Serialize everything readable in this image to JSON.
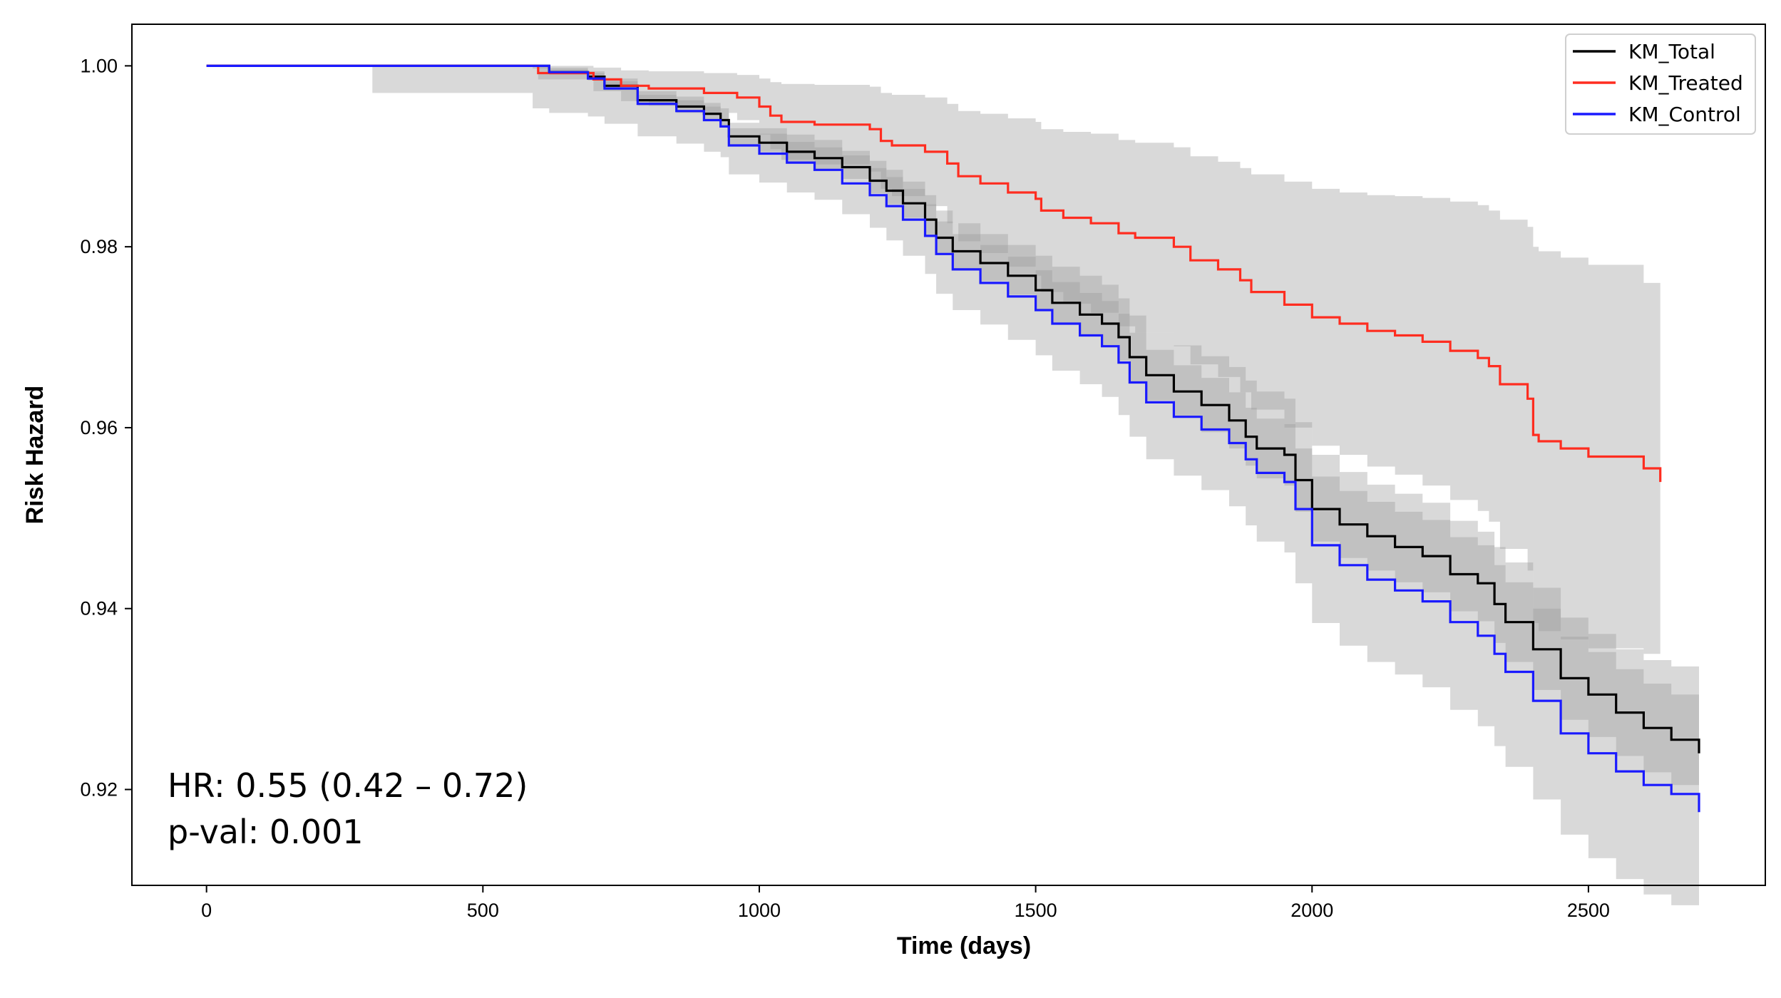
{
  "chart_data": {
    "type": "line",
    "subtype": "kaplan-meier",
    "xlabel": "Time (days)",
    "ylabel": "Risk Hazard",
    "xlim": [
      -135,
      2820
    ],
    "ylim": [
      0.9094,
      1.0046
    ],
    "xticks": [
      0,
      500,
      1000,
      1500,
      2000,
      2500
    ],
    "xtick_labels": [
      "0",
      "500",
      "1000",
      "1500",
      "2000",
      "2500"
    ],
    "yticks": [
      0.92,
      0.94,
      0.96,
      0.98,
      1.0
    ],
    "ytick_labels": [
      "0.92",
      "0.94",
      "0.96",
      "0.98",
      "1.00"
    ],
    "grid": false,
    "legend_position": "top-right",
    "annotations": [
      "HR: 0.55 (0.42 – 0.72)",
      "p-val: 0.001"
    ],
    "series": [
      {
        "name": "KM_Total",
        "color": "#000000",
        "x": [
          0,
          300,
          590,
          620,
          690,
          720,
          780,
          850,
          900,
          930,
          945,
          1000,
          1050,
          1100,
          1150,
          1200,
          1230,
          1260,
          1300,
          1320,
          1350,
          1400,
          1450,
          1500,
          1530,
          1580,
          1620,
          1650,
          1670,
          1700,
          1750,
          1800,
          1850,
          1880,
          1900,
          1950,
          1970,
          2000,
          2050,
          2100,
          2150,
          2200,
          2250,
          2300,
          2330,
          2350,
          2400,
          2450,
          2500,
          2550,
          2600,
          2650,
          2700
        ],
        "y": [
          1.0,
          1.0,
          1.0,
          0.9993,
          0.9988,
          0.9978,
          0.9962,
          0.9955,
          0.9947,
          0.994,
          0.9922,
          0.9915,
          0.9905,
          0.9898,
          0.9888,
          0.9873,
          0.9862,
          0.9848,
          0.983,
          0.981,
          0.9795,
          0.9782,
          0.9768,
          0.9752,
          0.9738,
          0.9725,
          0.9715,
          0.97,
          0.9678,
          0.9658,
          0.964,
          0.9625,
          0.9608,
          0.959,
          0.9577,
          0.957,
          0.9542,
          0.951,
          0.9493,
          0.948,
          0.9468,
          0.9458,
          0.9438,
          0.9428,
          0.9405,
          0.9385,
          0.9355,
          0.9323,
          0.9305,
          0.9285,
          0.9268,
          0.9255,
          0.924
        ]
      },
      {
        "name": "KM_Treated",
        "color": "#ff2d20",
        "x": [
          0,
          600,
          700,
          750,
          800,
          900,
          960,
          1000,
          1020,
          1040,
          1100,
          1200,
          1220,
          1240,
          1300,
          1340,
          1360,
          1400,
          1450,
          1500,
          1510,
          1550,
          1600,
          1650,
          1680,
          1750,
          1780,
          1830,
          1870,
          1890,
          1950,
          2000,
          2050,
          2100,
          2150,
          2200,
          2250,
          2300,
          2320,
          2340,
          2390,
          2400,
          2410,
          2450,
          2500,
          2600,
          2630
        ],
        "y": [
          1.0,
          0.9992,
          0.9985,
          0.9978,
          0.9975,
          0.997,
          0.9965,
          0.9955,
          0.9945,
          0.9938,
          0.9935,
          0.993,
          0.9917,
          0.9912,
          0.9905,
          0.9892,
          0.9878,
          0.987,
          0.986,
          0.9853,
          0.984,
          0.9832,
          0.9826,
          0.9815,
          0.981,
          0.98,
          0.9785,
          0.9775,
          0.9763,
          0.975,
          0.9736,
          0.9722,
          0.9715,
          0.9707,
          0.9702,
          0.9695,
          0.9685,
          0.9677,
          0.9668,
          0.9648,
          0.9632,
          0.9592,
          0.9585,
          0.9577,
          0.9568,
          0.9555,
          0.954
        ]
      },
      {
        "name": "KM_Control",
        "color": "#1a1aff",
        "x": [
          0,
          300,
          590,
          620,
          690,
          720,
          780,
          850,
          900,
          930,
          945,
          1000,
          1050,
          1100,
          1150,
          1200,
          1230,
          1260,
          1300,
          1320,
          1350,
          1400,
          1450,
          1500,
          1530,
          1580,
          1620,
          1650,
          1670,
          1700,
          1750,
          1800,
          1850,
          1880,
          1900,
          1950,
          1970,
          2000,
          2050,
          2100,
          2150,
          2200,
          2250,
          2300,
          2330,
          2350,
          2400,
          2450,
          2500,
          2550,
          2600,
          2650,
          2700
        ],
        "y": [
          1.0,
          1.0,
          1.0,
          0.9993,
          0.9986,
          0.9975,
          0.9958,
          0.995,
          0.994,
          0.9933,
          0.9912,
          0.9903,
          0.9893,
          0.9885,
          0.987,
          0.9857,
          0.9845,
          0.983,
          0.9812,
          0.9792,
          0.9775,
          0.976,
          0.9745,
          0.973,
          0.9715,
          0.9702,
          0.969,
          0.9672,
          0.965,
          0.9628,
          0.9612,
          0.9598,
          0.9583,
          0.9565,
          0.955,
          0.954,
          0.951,
          0.947,
          0.9448,
          0.9432,
          0.942,
          0.9408,
          0.9385,
          0.937,
          0.935,
          0.933,
          0.9298,
          0.9262,
          0.924,
          0.922,
          0.9205,
          0.9195,
          0.9175
        ]
      }
    ],
    "confidence_bands": [
      {
        "series": "KM_Total",
        "x": [
          0,
          300,
          590,
          620,
          690,
          720,
          780,
          850,
          900,
          930,
          945,
          1000,
          1050,
          1100,
          1150,
          1200,
          1230,
          1260,
          1300,
          1320,
          1350,
          1400,
          1450,
          1500,
          1530,
          1580,
          1620,
          1650,
          1670,
          1700,
          1750,
          1800,
          1850,
          1880,
          1900,
          1950,
          1970,
          2000,
          2050,
          2100,
          2150,
          2200,
          2250,
          2300,
          2330,
          2350,
          2400,
          2450,
          2500,
          2550,
          2600,
          2650,
          2700
        ],
        "upper": [
          1.0,
          1.0,
          1.0,
          0.9996,
          0.9992,
          0.9983,
          0.9968,
          0.9962,
          0.9955,
          0.9948,
          0.9931,
          0.9925,
          0.9916,
          0.991,
          0.9901,
          0.9887,
          0.9877,
          0.9864,
          0.9847,
          0.9828,
          0.9814,
          0.9802,
          0.9789,
          0.9774,
          0.9761,
          0.9749,
          0.974,
          0.9726,
          0.9705,
          0.9686,
          0.9669,
          0.9655,
          0.9639,
          0.9622,
          0.961,
          0.9604,
          0.9577,
          0.9546,
          0.953,
          0.9518,
          0.9507,
          0.9498,
          0.9479,
          0.947,
          0.9448,
          0.9429,
          0.94,
          0.9369,
          0.9352,
          0.9333,
          0.9317,
          0.9305,
          0.93
        ],
        "lower": [
          1.0,
          1.0,
          0.9997,
          0.999,
          0.9984,
          0.9973,
          0.9956,
          0.9948,
          0.9939,
          0.9932,
          0.9913,
          0.9905,
          0.9894,
          0.9886,
          0.9875,
          0.9859,
          0.9847,
          0.9832,
          0.9813,
          0.9792,
          0.9776,
          0.9762,
          0.9747,
          0.973,
          0.9715,
          0.9701,
          0.969,
          0.9674,
          0.9651,
          0.963,
          0.9611,
          0.9595,
          0.9577,
          0.9558,
          0.9544,
          0.9536,
          0.9507,
          0.9474,
          0.9456,
          0.9442,
          0.9429,
          0.9418,
          0.9397,
          0.9386,
          0.9362,
          0.9341,
          0.931,
          0.9277,
          0.9258,
          0.9237,
          0.9219,
          0.9205,
          0.918
        ]
      },
      {
        "series": "KM_Treated",
        "x": [
          0,
          600,
          700,
          750,
          800,
          900,
          960,
          1000,
          1020,
          1040,
          1100,
          1200,
          1220,
          1240,
          1300,
          1340,
          1360,
          1400,
          1450,
          1500,
          1510,
          1550,
          1600,
          1650,
          1680,
          1750,
          1780,
          1830,
          1870,
          1890,
          1950,
          2000,
          2050,
          2100,
          2150,
          2200,
          2250,
          2300,
          2320,
          2340,
          2390,
          2400,
          2410,
          2450,
          2500,
          2600,
          2630
        ],
        "upper": [
          1.0,
          1.0,
          0.9998,
          0.9995,
          0.9994,
          0.9992,
          0.999,
          0.9986,
          0.9982,
          0.998,
          0.9979,
          0.9977,
          0.997,
          0.9968,
          0.9965,
          0.9958,
          0.995,
          0.9947,
          0.9942,
          0.9938,
          0.993,
          0.9927,
          0.9925,
          0.9918,
          0.9915,
          0.991,
          0.99,
          0.9894,
          0.9887,
          0.988,
          0.9872,
          0.9864,
          0.986,
          0.9857,
          0.9856,
          0.9854,
          0.985,
          0.9846,
          0.984,
          0.983,
          0.9822,
          0.98,
          0.9795,
          0.9788,
          0.978,
          0.976,
          0.964
        ],
        "lower": [
          1.0,
          0.9985,
          0.9972,
          0.9961,
          0.9956,
          0.9948,
          0.994,
          0.9924,
          0.9908,
          0.9896,
          0.9891,
          0.9883,
          0.9864,
          0.9856,
          0.9845,
          0.9826,
          0.9806,
          0.9793,
          0.9778,
          0.9768,
          0.975,
          0.9737,
          0.9727,
          0.9712,
          0.9705,
          0.969,
          0.967,
          0.9656,
          0.9639,
          0.962,
          0.96,
          0.958,
          0.957,
          0.9557,
          0.9548,
          0.9536,
          0.952,
          0.9508,
          0.9496,
          0.9466,
          0.9442,
          0.9384,
          0.9375,
          0.9366,
          0.9356,
          0.935,
          0.941
        ]
      },
      {
        "series": "KM_Control",
        "x": [
          0,
          300,
          590,
          620,
          690,
          720,
          780,
          850,
          900,
          930,
          945,
          1000,
          1050,
          1100,
          1150,
          1200,
          1230,
          1260,
          1300,
          1320,
          1350,
          1400,
          1450,
          1500,
          1530,
          1580,
          1620,
          1650,
          1670,
          1700,
          1750,
          1800,
          1850,
          1880,
          1900,
          1950,
          1970,
          2000,
          2050,
          2100,
          2150,
          2200,
          2250,
          2300,
          2330,
          2350,
          2400,
          2450,
          2500,
          2550,
          2600,
          2650,
          2700
        ],
        "upper": [
          1.0,
          1.0,
          1.0,
          0.9998,
          0.9994,
          0.9986,
          0.9972,
          0.9966,
          0.9959,
          0.9953,
          0.9937,
          0.9931,
          0.9924,
          0.9918,
          0.9906,
          0.9895,
          0.9885,
          0.9872,
          0.9857,
          0.984,
          0.9826,
          0.9814,
          0.9802,
          0.979,
          0.9778,
          0.9768,
          0.9758,
          0.9743,
          0.9724,
          0.9705,
          0.9691,
          0.9679,
          0.9667,
          0.9652,
          0.964,
          0.9632,
          0.9606,
          0.957,
          0.9551,
          0.9537,
          0.9527,
          0.9517,
          0.9497,
          0.9485,
          0.9468,
          0.9451,
          0.9423,
          0.939,
          0.9372,
          0.9355,
          0.9343,
          0.9336,
          0.93
        ],
        "lower": [
          1.0,
          0.997,
          0.9953,
          0.9948,
          0.9944,
          0.9936,
          0.9922,
          0.9914,
          0.9905,
          0.9899,
          0.988,
          0.9871,
          0.986,
          0.9852,
          0.9836,
          0.9821,
          0.9807,
          0.979,
          0.977,
          0.9748,
          0.973,
          0.9714,
          0.9697,
          0.968,
          0.9663,
          0.9648,
          0.9634,
          0.9614,
          0.959,
          0.9565,
          0.9547,
          0.9531,
          0.9513,
          0.9492,
          0.9474,
          0.9462,
          0.9428,
          0.9384,
          0.9359,
          0.9341,
          0.9327,
          0.9313,
          0.9288,
          0.927,
          0.9248,
          0.9225,
          0.9189,
          0.915,
          0.9124,
          0.9101,
          0.9084,
          0.9072,
          0.9105
        ]
      }
    ]
  }
}
